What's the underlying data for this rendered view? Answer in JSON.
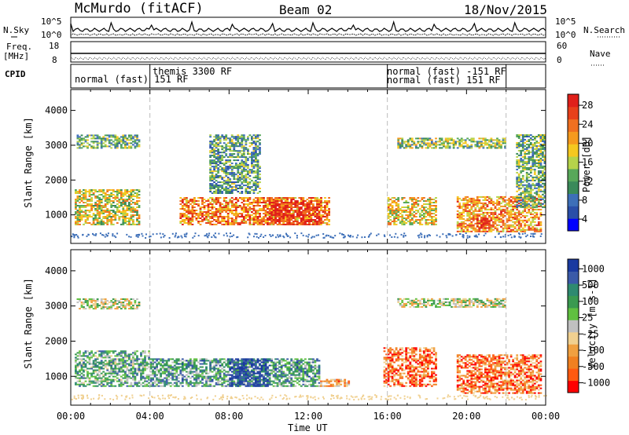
{
  "header": {
    "station": "McMurdo (fitACF)",
    "beam": "Beam 02",
    "date": "18/Nov/2015"
  },
  "top_panels": {
    "nsky_label": "N.Sky",
    "nsearch_label": "N.Search",
    "noise_ticks_left": [
      "10^5",
      "10^0"
    ],
    "noise_ticks_right": [
      "10^5",
      "10^0"
    ],
    "freq_label_1": "Freq.",
    "freq_label_2": "[MHz]",
    "freq_ticks": [
      "18",
      "8"
    ],
    "nave_label": "Nave",
    "nave_ticks": [
      "60",
      "0"
    ],
    "cpid_label": "CPID",
    "cpid_segments": [
      {
        "label": "normal (fast) 151 RF",
        "start_hour": 0.0
      },
      {
        "label": "themis 3300 RF",
        "start_hour": 4.0
      },
      {
        "label": "normal (fast) -151 RF",
        "start_hour": 16.0
      },
      {
        "label": "normal (fast) 151 RF",
        "start_hour": 22.0
      }
    ]
  },
  "chart_data": [
    {
      "type": "heatmap",
      "name": "Power",
      "ylabel": "Slant Range [km]",
      "y_ticks": [
        "1000",
        "2000",
        "3000",
        "4000"
      ],
      "y_tick_values": [
        1000,
        2000,
        3000,
        4000
      ],
      "ylim": [
        180,
        4600
      ],
      "xlim_hours": [
        0,
        24
      ],
      "colorbar_label": "Power [dB]",
      "colorbar_ticks": [
        "28",
        "24",
        "20",
        "16",
        "12",
        "8",
        "4"
      ],
      "colorbar_colors": [
        "#0000ff",
        "#2a4ea8",
        "#3d6fb8",
        "#3a8a5a",
        "#58a85a",
        "#b5d34a",
        "#f5c820",
        "#f59a1e",
        "#f07020",
        "#e8401a",
        "#e0201a"
      ],
      "regions": [
        {
          "h0": 0.2,
          "h1": 3.5,
          "r0": 700,
          "r1": 1700,
          "level": 0.55
        },
        {
          "h0": 5.5,
          "h1": 13.0,
          "r0": 700,
          "r1": 1500,
          "level": 0.75
        },
        {
          "h0": 10.0,
          "h1": 12.5,
          "r0": 700,
          "r1": 1400,
          "level": 0.95
        },
        {
          "h0": 0.3,
          "h1": 3.5,
          "r0": 2900,
          "r1": 3300,
          "level": 0.4
        },
        {
          "h0": 7.0,
          "h1": 9.5,
          "r0": 1600,
          "r1": 3300,
          "level": 0.35
        },
        {
          "h0": 16.0,
          "h1": 18.5,
          "r0": 700,
          "r1": 1500,
          "level": 0.6
        },
        {
          "h0": 19.5,
          "h1": 23.8,
          "r0": 500,
          "r1": 1500,
          "level": 0.7
        },
        {
          "h0": 20.5,
          "h1": 21.2,
          "r0": 600,
          "r1": 900,
          "level": 1.0
        },
        {
          "h0": 16.5,
          "h1": 22.0,
          "r0": 2900,
          "r1": 3200,
          "level": 0.45
        },
        {
          "h0": 22.5,
          "h1": 24.0,
          "r0": 1200,
          "r1": 3300,
          "level": 0.4
        }
      ]
    },
    {
      "type": "heatmap",
      "name": "Velocity",
      "ylabel": "Slant Range [km]",
      "xlabel": "Time UT",
      "x_ticks": [
        "00:00",
        "04:00",
        "08:00",
        "12:00",
        "16:00",
        "20:00",
        "00:00"
      ],
      "x_tick_hours": [
        0,
        4,
        8,
        12,
        16,
        20,
        24
      ],
      "y_ticks": [
        "1000",
        "2000",
        "3000",
        "4000"
      ],
      "y_tick_values": [
        1000,
        2000,
        3000,
        4000
      ],
      "ylim": [
        180,
        4600
      ],
      "xlim_hours": [
        0,
        24
      ],
      "colorbar_label": "Velocity [m s-1]",
      "colorbar_ticks": [
        "1000",
        "500",
        "100",
        "25",
        "-25",
        "-100",
        "-500",
        "-1000"
      ],
      "colorbar_colors": [
        "#ff0000",
        "#ff5a10",
        "#f08020",
        "#f0a040",
        "#f0d090",
        "#c0c0c0",
        "#60c040",
        "#3a9a50",
        "#2e8a70",
        "#3a5aa8",
        "#1a3aa0"
      ],
      "regions": [
        {
          "h0": 0.2,
          "h1": 4.0,
          "r0": 700,
          "r1": 1700,
          "level": 0.65
        },
        {
          "h0": 4.0,
          "h1": 12.5,
          "r0": 700,
          "r1": 1500,
          "level": 0.7
        },
        {
          "h0": 8.0,
          "h1": 10.0,
          "r0": 700,
          "r1": 1500,
          "level": 0.95
        },
        {
          "h0": 0.3,
          "h1": 3.5,
          "r0": 2900,
          "r1": 3200,
          "level": 0.5
        },
        {
          "h0": 15.8,
          "h1": 18.5,
          "r0": 700,
          "r1": 1800,
          "level": 0.2
        },
        {
          "h0": 19.5,
          "h1": 23.8,
          "r0": 500,
          "r1": 1600,
          "level": 0.2
        },
        {
          "h0": 16.5,
          "h1": 22.0,
          "r0": 2950,
          "r1": 3200,
          "level": 0.5
        },
        {
          "h0": 12.5,
          "h1": 14.0,
          "r0": 700,
          "r1": 900,
          "level": 0.3
        }
      ]
    }
  ]
}
